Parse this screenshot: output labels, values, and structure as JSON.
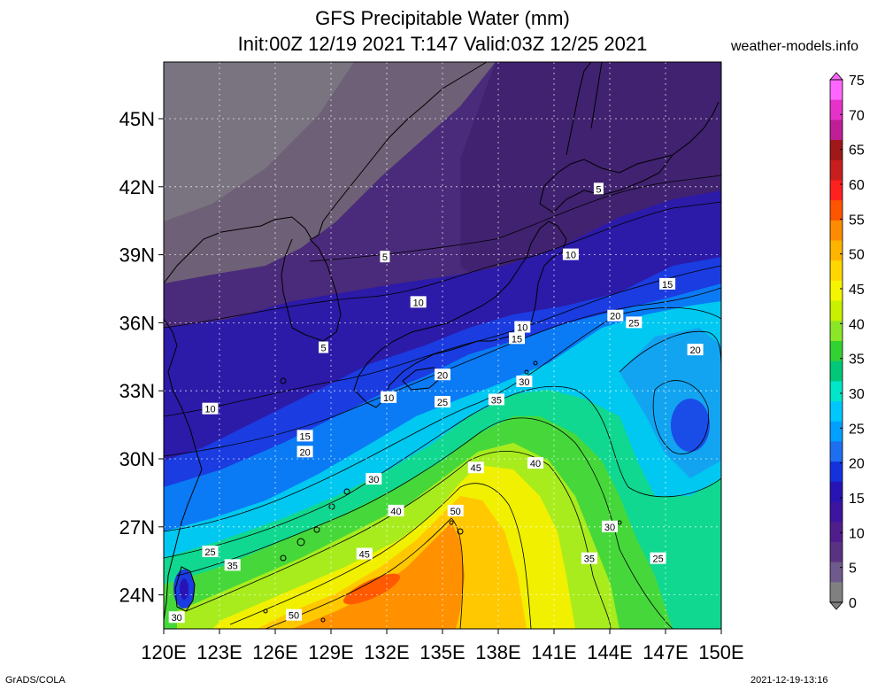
{
  "title": {
    "line1": "GFS Precipitable Water (mm)",
    "line2": "Init:00Z 12/19 2021 T:147 Valid:03Z 12/25 2021"
  },
  "site": "weather-models.info",
  "footer": {
    "left": "GrADS/COLA",
    "right": "2021-12-19-13:16"
  },
  "axes": {
    "lat_labels": [
      "45N",
      "42N",
      "39N",
      "36N",
      "33N",
      "30N",
      "27N",
      "24N"
    ],
    "lon_labels": [
      "120E",
      "123E",
      "126E",
      "129E",
      "132E",
      "135E",
      "138E",
      "141E",
      "144E",
      "147E",
      "150E"
    ]
  },
  "colorbar": {
    "ticks": [
      "75",
      "70",
      "65",
      "60",
      "55",
      "50",
      "45",
      "40",
      "35",
      "30",
      "25",
      "20",
      "15",
      "10",
      "5",
      "0"
    ],
    "colors": [
      "#ff66ff",
      "#e632c8",
      "#c01e96",
      "#a01818",
      "#c81e1e",
      "#ff2020",
      "#ff5500",
      "#ff8c00",
      "#ffb400",
      "#ffd700",
      "#f5f500",
      "#c8f000",
      "#8ce628",
      "#32d232",
      "#00c878",
      "#00e6c8",
      "#00c8ff",
      "#00a0ff",
      "#1e6ef0",
      "#1432dc",
      "#2814b4",
      "#3c14a0",
      "#501e8c",
      "#5a3282",
      "#6e5a8c",
      "#808080"
    ]
  },
  "contour_labels": [
    {
      "text": "5",
      "lon": 143.4,
      "lat": 41.9
    },
    {
      "text": "5",
      "lon": 131.9,
      "lat": 38.9
    },
    {
      "text": "5",
      "lon": 128.6,
      "lat": 34.9
    },
    {
      "text": "10",
      "lon": 141.9,
      "lat": 39.0
    },
    {
      "text": "10",
      "lon": 133.7,
      "lat": 36.9
    },
    {
      "text": "10",
      "lon": 139.3,
      "lat": 35.8
    },
    {
      "text": "10",
      "lon": 132.1,
      "lat": 32.7
    },
    {
      "text": "10",
      "lon": 122.5,
      "lat": 32.2
    },
    {
      "text": "15",
      "lon": 147.1,
      "lat": 37.7
    },
    {
      "text": "15",
      "lon": 139.0,
      "lat": 35.3
    },
    {
      "text": "15",
      "lon": 127.6,
      "lat": 31.0
    },
    {
      "text": "20",
      "lon": 144.3,
      "lat": 36.3
    },
    {
      "text": "20",
      "lon": 135.0,
      "lat": 33.7
    },
    {
      "text": "20",
      "lon": 127.6,
      "lat": 30.3
    },
    {
      "text": "20",
      "lon": 148.6,
      "lat": 34.8
    },
    {
      "text": "25",
      "lon": 145.3,
      "lat": 36.0
    },
    {
      "text": "25",
      "lon": 135.0,
      "lat": 32.5
    },
    {
      "text": "25",
      "lon": 122.5,
      "lat": 25.9
    },
    {
      "text": "25",
      "lon": 146.6,
      "lat": 25.6
    },
    {
      "text": "30",
      "lon": 139.4,
      "lat": 33.4
    },
    {
      "text": "30",
      "lon": 131.3,
      "lat": 29.1
    },
    {
      "text": "30",
      "lon": 144.0,
      "lat": 27.0
    },
    {
      "text": "30",
      "lon": 120.7,
      "lat": 23.0
    },
    {
      "text": "35",
      "lon": 137.9,
      "lat": 32.6
    },
    {
      "text": "35",
      "lon": 123.7,
      "lat": 25.3
    },
    {
      "text": "35",
      "lon": 142.9,
      "lat": 25.6
    },
    {
      "text": "40",
      "lon": 140.0,
      "lat": 29.8
    },
    {
      "text": "40",
      "lon": 132.5,
      "lat": 27.7
    },
    {
      "text": "45",
      "lon": 136.8,
      "lat": 29.6
    },
    {
      "text": "45",
      "lon": 130.8,
      "lat": 25.8
    },
    {
      "text": "50",
      "lon": 135.7,
      "lat": 27.7
    },
    {
      "text": "50",
      "lon": 127.0,
      "lat": 23.1
    }
  ]
}
